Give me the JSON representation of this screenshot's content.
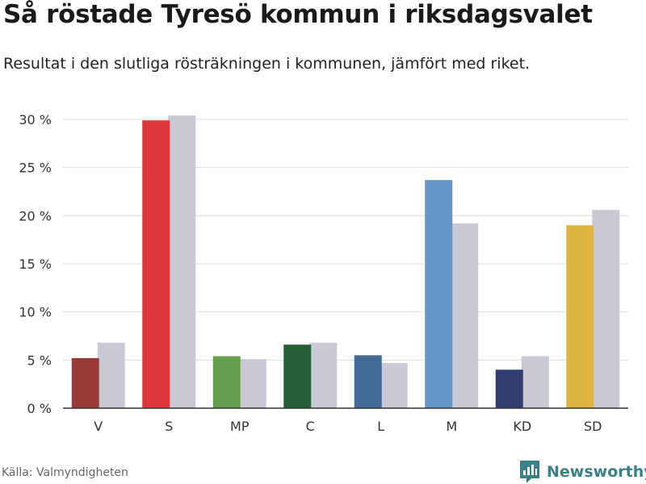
{
  "title": "Så röstade Tyresö kommun i riksdagsvalet",
  "subtitle": "Resultat i den slutliga rösträkningen i kommunen, jämfört med riket.",
  "source": "Källa: Valmyndigheten",
  "brand": {
    "name": "Newsworthy",
    "icon": "newsworthy-logo-icon",
    "color": "#3d7f87"
  },
  "chart_data": {
    "type": "bar",
    "categories": [
      "V",
      "S",
      "MP",
      "C",
      "L",
      "M",
      "KD",
      "SD"
    ],
    "series": [
      {
        "values": [
          5.2,
          29.9,
          5.4,
          6.6,
          5.5,
          23.7,
          4.0,
          19.0
        ],
        "colors": [
          "#983a37",
          "#dd363c",
          "#64a04f",
          "#255f35",
          "#436b97",
          "#6196c6",
          "#323d72",
          "#e0b442"
        ]
      },
      {
        "values": [
          6.8,
          30.4,
          5.1,
          6.8,
          4.7,
          19.2,
          5.4,
          20.6
        ],
        "color": "#c9c9d6"
      }
    ],
    "ylim": [
      0,
      30
    ],
    "yticks": [
      0,
      5,
      10,
      15,
      20,
      25,
      30
    ],
    "ytick_labels": [
      "0 %",
      "5 %",
      "10 %",
      "15 %",
      "20 %",
      "25 %",
      "30 %"
    ],
    "grid": true,
    "xlabel": "",
    "ylabel": ""
  }
}
